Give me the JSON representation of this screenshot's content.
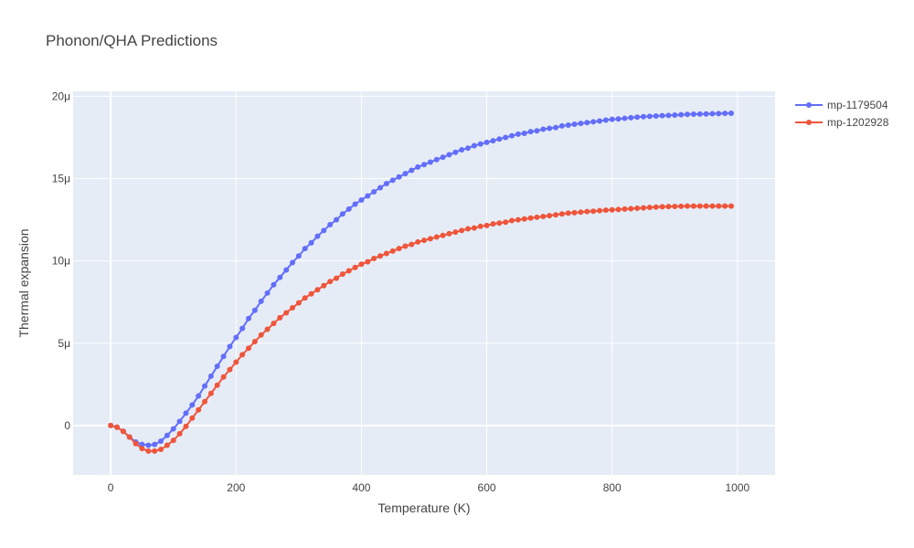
{
  "chart_data": {
    "type": "line",
    "title": "Phonon/QHA Predictions",
    "xlabel": "Temperature (K)",
    "ylabel": "Thermal expansion",
    "xlim": [
      -60,
      1060
    ],
    "ylim": [
      -3e-06,
      2.03e-05
    ],
    "x_ticks": [
      0,
      200,
      400,
      600,
      800,
      1000
    ],
    "x_tick_labels": [
      "0",
      "200",
      "400",
      "600",
      "800",
      "1000"
    ],
    "y_ticks": [
      0,
      5e-06,
      1e-05,
      1.5e-05,
      2e-05
    ],
    "y_tick_labels": [
      "0",
      "5μ",
      "10μ",
      "15μ",
      "20μ"
    ],
    "grid": true,
    "legend_position": "top-right",
    "background_color": "#e5ecf6",
    "x": [
      0,
      10,
      20,
      30,
      40,
      50,
      60,
      70,
      80,
      90,
      100,
      110,
      120,
      130,
      140,
      150,
      160,
      170,
      180,
      190,
      200,
      210,
      220,
      230,
      240,
      250,
      260,
      270,
      280,
      290,
      300,
      310,
      320,
      330,
      340,
      350,
      360,
      370,
      380,
      390,
      400,
      410,
      420,
      430,
      440,
      450,
      460,
      470,
      480,
      490,
      500,
      510,
      520,
      530,
      540,
      550,
      560,
      570,
      580,
      590,
      600,
      610,
      620,
      630,
      640,
      650,
      660,
      670,
      680,
      690,
      700,
      710,
      720,
      730,
      740,
      750,
      760,
      770,
      780,
      790,
      800,
      810,
      820,
      830,
      840,
      850,
      860,
      870,
      880,
      890,
      900,
      910,
      920,
      930,
      940,
      950,
      960,
      970,
      980,
      990
    ],
    "series": [
      {
        "name": "mp-1179504",
        "color": "#636efa",
        "values": [
          0.0,
          -1e-07,
          -3.5e-07,
          -7e-07,
          -1e-06,
          -1.15e-06,
          -1.2e-06,
          -1.15e-06,
          -9.5e-07,
          -6e-07,
          -2e-07,
          2.5e-07,
          7.5e-07,
          1.25e-06,
          1.8e-06,
          2.4e-06,
          3e-06,
          3.6e-06,
          4.2e-06,
          4.8e-06,
          5.35e-06,
          5.9e-06,
          6.5e-06,
          7e-06,
          7.55e-06,
          8.05e-06,
          8.55e-06,
          9e-06,
          9.45e-06,
          9.9e-06,
          1.03e-05,
          1.075e-05,
          1.11e-05,
          1.15e-05,
          1.185e-05,
          1.22e-05,
          1.25e-05,
          1.285e-05,
          1.315e-05,
          1.345e-05,
          1.37e-05,
          1.395e-05,
          1.42e-05,
          1.445e-05,
          1.47e-05,
          1.49e-05,
          1.51e-05,
          1.53e-05,
          1.55e-05,
          1.57e-05,
          1.585e-05,
          1.6e-05,
          1.615e-05,
          1.63e-05,
          1.645e-05,
          1.66e-05,
          1.675e-05,
          1.685e-05,
          1.7e-05,
          1.71e-05,
          1.72e-05,
          1.73e-05,
          1.74e-05,
          1.75e-05,
          1.76e-05,
          1.77e-05,
          1.775e-05,
          1.785e-05,
          1.79e-05,
          1.8e-05,
          1.805e-05,
          1.81e-05,
          1.82e-05,
          1.825e-05,
          1.83e-05,
          1.835e-05,
          1.84e-05,
          1.845e-05,
          1.85e-05,
          1.855e-05,
          1.86e-05,
          1.862e-05,
          1.866e-05,
          1.87e-05,
          1.873e-05,
          1.876e-05,
          1.878e-05,
          1.88e-05,
          1.882e-05,
          1.884e-05,
          1.886e-05,
          1.888e-05,
          1.89e-05,
          1.891e-05,
          1.892e-05,
          1.893e-05,
          1.894e-05,
          1.895e-05,
          1.896e-05,
          1.897e-05
        ]
      },
      {
        "name": "mp-1202928",
        "color": "#ef553b",
        "values": [
          0.0,
          -1e-07,
          -3.5e-07,
          -7e-07,
          -1.1e-06,
          -1.4e-06,
          -1.55e-06,
          -1.55e-06,
          -1.45e-06,
          -1.2e-06,
          -9e-07,
          -5e-07,
          -5e-08,
          4.5e-07,
          9.5e-07,
          1.45e-06,
          1.95e-06,
          2.45e-06,
          2.95e-06,
          3.4e-06,
          3.85e-06,
          4.3e-06,
          4.7e-06,
          5.1e-06,
          5.5e-06,
          5.85e-06,
          6.2e-06,
          6.55e-06,
          6.85e-06,
          7.15e-06,
          7.45e-06,
          7.75e-06,
          8e-06,
          8.25e-06,
          8.5e-06,
          8.75e-06,
          8.95e-06,
          9.2e-06,
          9.4e-06,
          9.6e-06,
          9.8e-06,
          9.95e-06,
          1.015e-05,
          1.03e-05,
          1.045e-05,
          1.06e-05,
          1.075e-05,
          1.09e-05,
          1.1e-05,
          1.115e-05,
          1.125e-05,
          1.135e-05,
          1.145e-05,
          1.155e-05,
          1.165e-05,
          1.175e-05,
          1.185e-05,
          1.195e-05,
          1.2e-05,
          1.21e-05,
          1.215e-05,
          1.225e-05,
          1.23e-05,
          1.235e-05,
          1.245e-05,
          1.25e-05,
          1.255e-05,
          1.26e-05,
          1.265e-05,
          1.27e-05,
          1.275e-05,
          1.28e-05,
          1.285e-05,
          1.29e-05,
          1.293e-05,
          1.296e-05,
          1.3e-05,
          1.302e-05,
          1.305e-05,
          1.308e-05,
          1.31e-05,
          1.312e-05,
          1.315e-05,
          1.317e-05,
          1.32e-05,
          1.322e-05,
          1.325e-05,
          1.327e-05,
          1.329e-05,
          1.33e-05,
          1.331e-05,
          1.332e-05,
          1.333e-05,
          1.333e-05,
          1.333e-05,
          1.333e-05,
          1.333e-05,
          1.333e-05,
          1.333e-05,
          1.333e-05
        ]
      }
    ]
  }
}
